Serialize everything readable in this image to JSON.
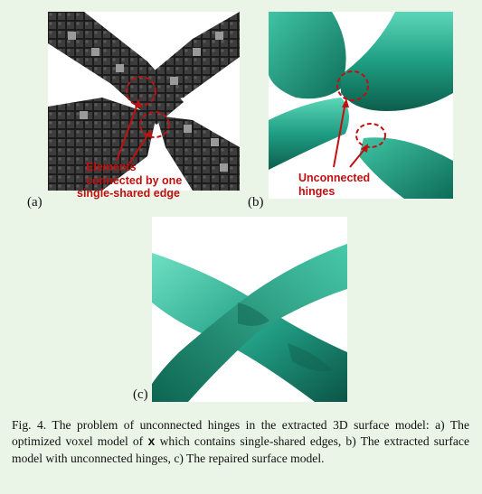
{
  "figure": {
    "panels": [
      {
        "label": "(a)",
        "annotation_lines": [
          "Elements",
          "connected by one",
          "single-shared edge"
        ]
      },
      {
        "label": "(b)",
        "annotation_lines": [
          "Unconnected",
          "hinges"
        ]
      },
      {
        "label": "(c)"
      }
    ],
    "caption": {
      "prefix": "Fig. 4.  The problem of unconnected hinges in the extracted 3D surface model: a) The optimized voxel model of ",
      "symbol": "x",
      "suffix": " which contains single-shared edges, b) The extracted surface model with unconnected hinges, c) The repaired surface model."
    }
  },
  "colors": {
    "background": "#eaf5e7",
    "voxel_dark": "#3f3f3f",
    "surface_teal": "#1f9e83",
    "annotation_red": "#c01010"
  }
}
